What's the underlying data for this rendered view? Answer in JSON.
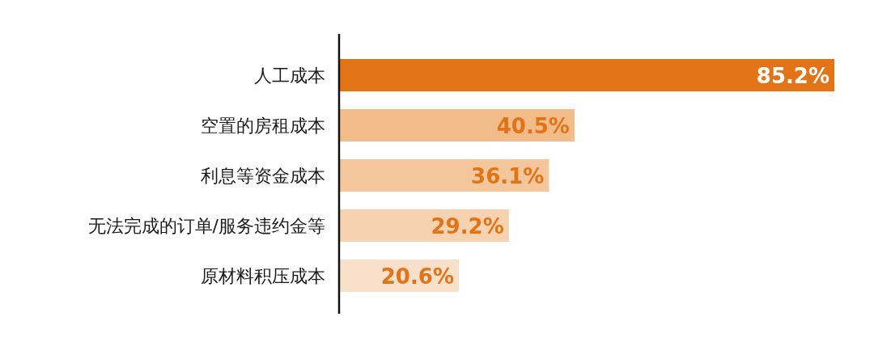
{
  "chart_data": {
    "type": "bar",
    "orientation": "horizontal",
    "categories": [
      "人工成本",
      "空置的房租成本",
      "利息等资金成本",
      "无法完成的订单/服务违约金等",
      "原材料积压成本"
    ],
    "values": [
      85.2,
      40.5,
      36.1,
      29.2,
      20.6
    ],
    "colors": [
      "#e37317",
      "#f2bc8a",
      "#f4c69b",
      "#f6d2b0",
      "#f9e0ca"
    ],
    "value_labels": [
      "85.2%",
      "40.5%",
      "36.1%",
      "29.2%",
      "20.6%"
    ]
  }
}
